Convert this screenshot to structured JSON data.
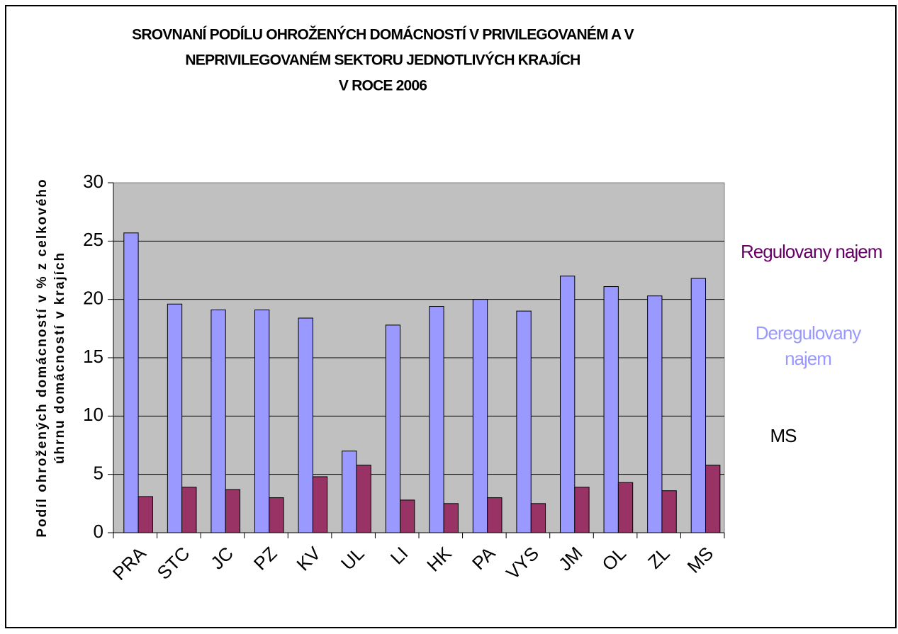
{
  "chart_data": {
    "type": "bar",
    "title_lines": [
      "SROVNANÍ PODÍLU OHROŽENÝCH DOMÁCNOSTÍ V PRIVILEGOVANÉM A V",
      "NEPRIVILEGOVANÉM SEKTORU  JEDNOTLIVÝCH KRAJÍCH",
      "V ROCE 2006"
    ],
    "y_label_lines": [
      "Podíl ohrožených domácností v % z celkového",
      "úhrnu domácností v  krajích"
    ],
    "categories": [
      "PRA",
      "STC",
      "JC",
      "PZ",
      "KV",
      "UL",
      "LI",
      "HK",
      "PA",
      "VYS",
      "JM",
      "OL",
      "ZL",
      "MS"
    ],
    "series": [
      {
        "name": "Deregulovany najem",
        "color": "#9999ff",
        "values": [
          25.7,
          19.6,
          19.1,
          19.1,
          18.4,
          7.0,
          17.8,
          19.4,
          20.0,
          19.0,
          22.0,
          21.1,
          20.3,
          21.8
        ]
      },
      {
        "name": "Regulovany najem",
        "color": "#993366",
        "values": [
          3.1,
          3.9,
          3.7,
          3.0,
          4.8,
          5.8,
          2.8,
          2.5,
          3.0,
          2.5,
          3.9,
          4.3,
          3.6,
          5.8
        ]
      },
      {
        "name": "MS",
        "color": "#000000",
        "values": [
          null,
          null,
          null,
          null,
          null,
          null,
          null,
          null,
          null,
          null,
          null,
          null,
          null,
          null
        ]
      }
    ],
    "legend_text_colors": [
      "#9999ff",
      "#660066",
      "#000000"
    ],
    "ylim": [
      0,
      30
    ],
    "yticks": [
      0,
      5,
      10,
      15,
      20,
      25,
      30
    ],
    "grid": true,
    "plot_background": "#c0c0c0"
  }
}
